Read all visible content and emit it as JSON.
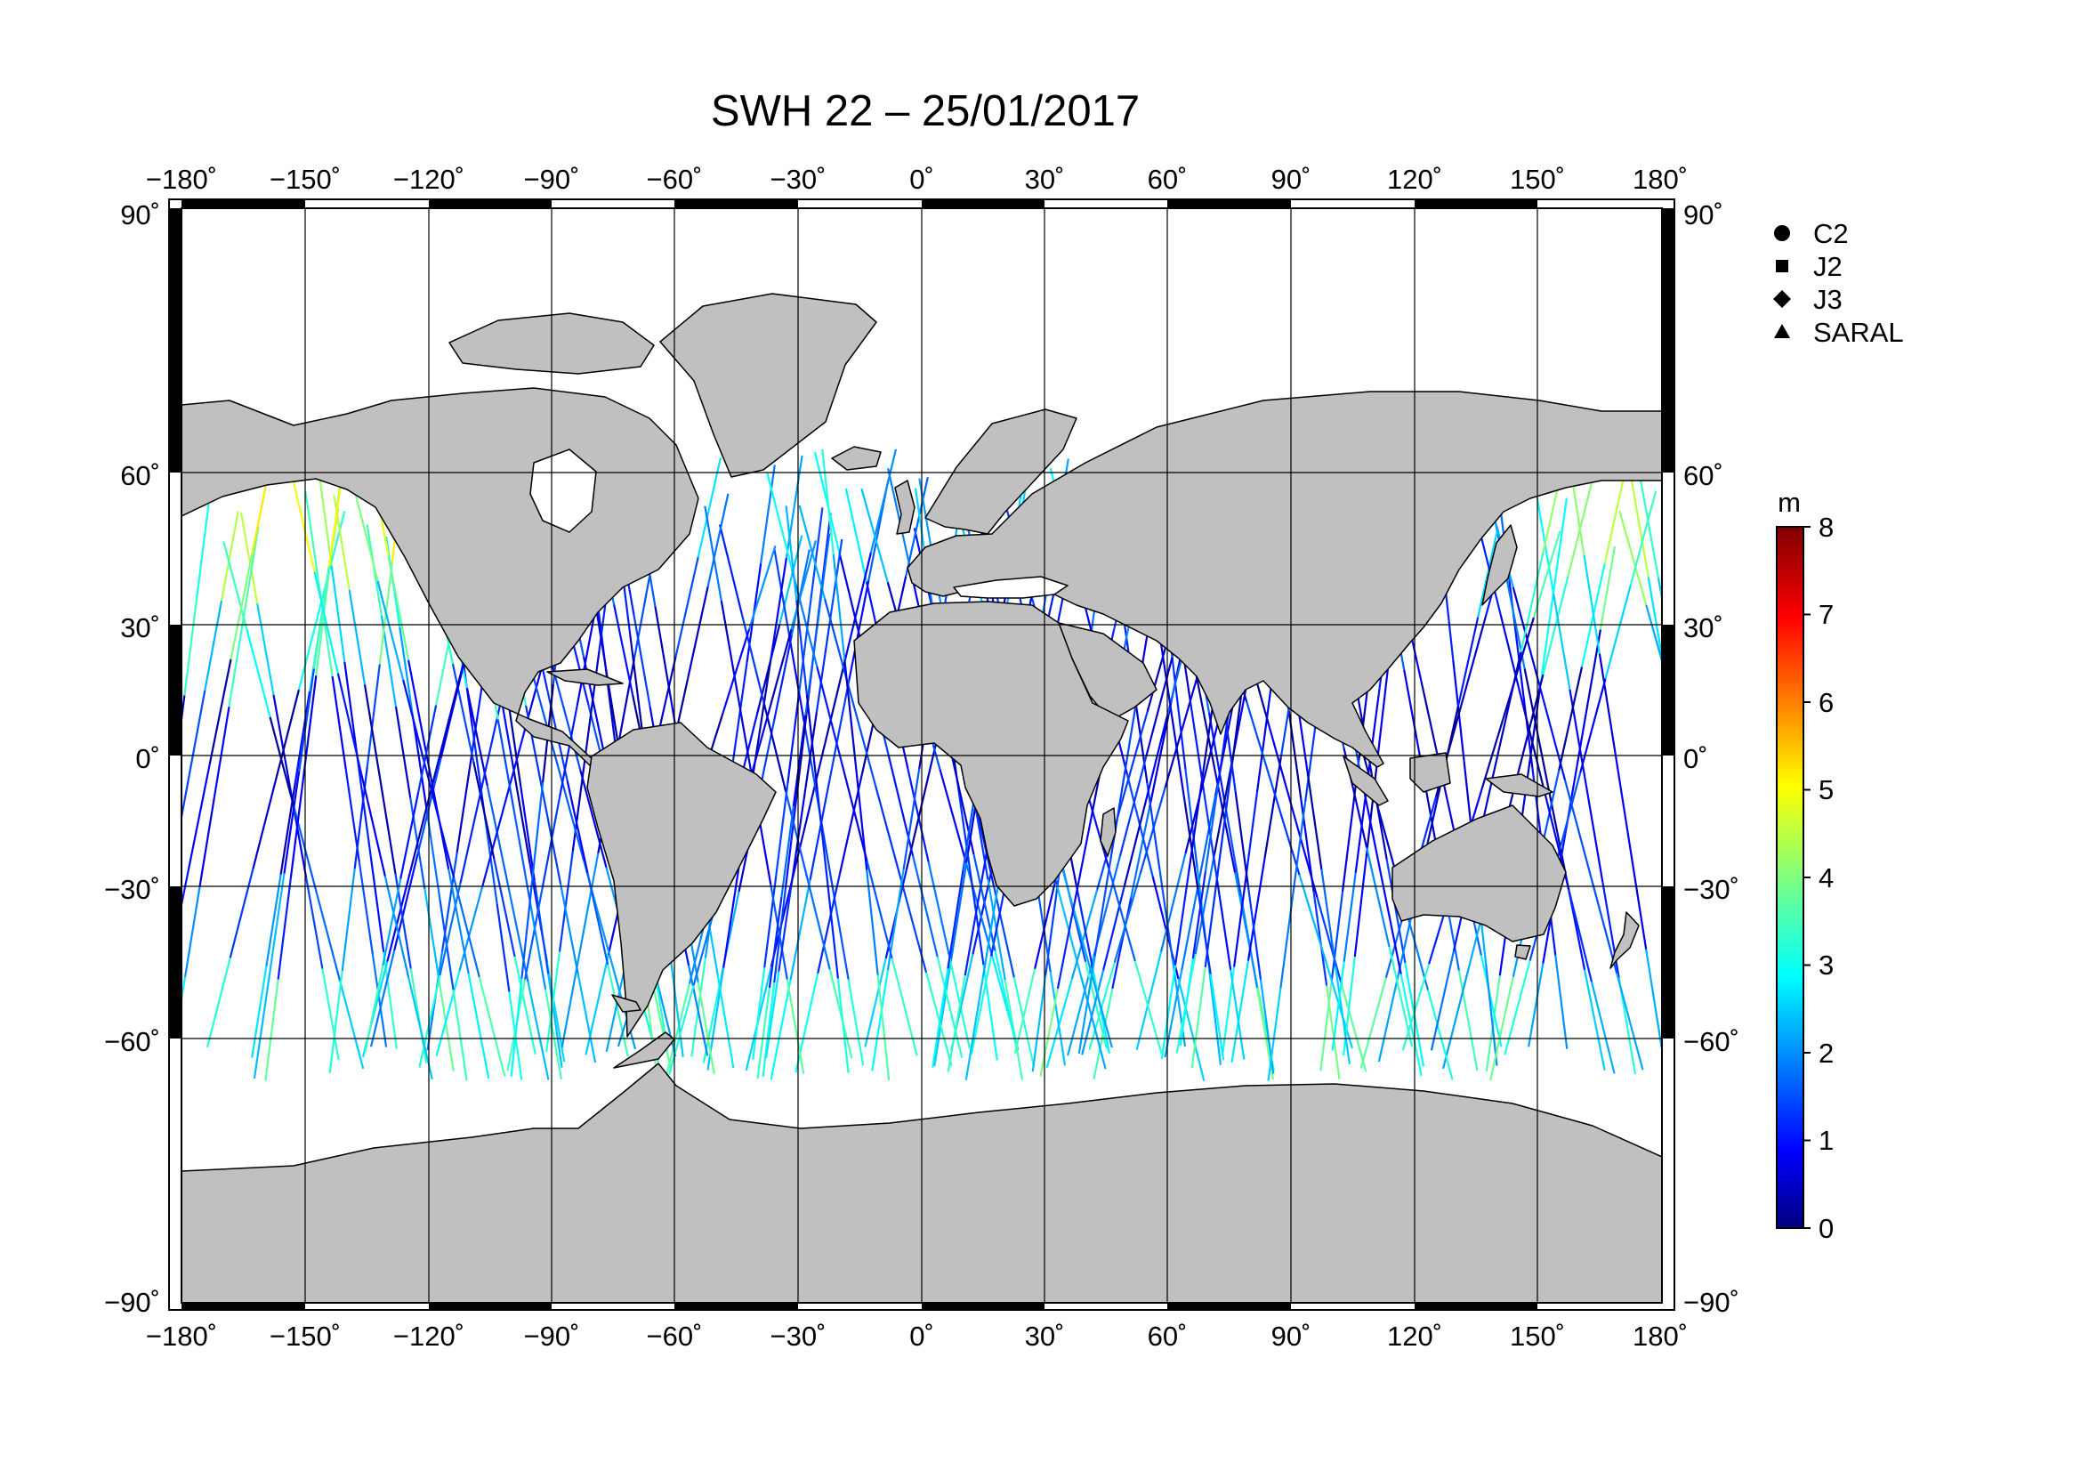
{
  "title": "SWH 22 – 25/01/2017",
  "map": {
    "lon_ticks": [
      "−180˚",
      "−150˚",
      "−120˚",
      "−90˚",
      "−60˚",
      "−30˚",
      "0˚",
      "30˚",
      "60˚",
      "90˚",
      "120˚",
      "150˚",
      "180˚"
    ],
    "lat_ticks_left": [
      "90˚",
      "60˚",
      "30˚",
      "0˚",
      "−30˚",
      "−60˚",
      "−90˚"
    ],
    "lat_ticks_right": [
      "90˚",
      "60˚",
      "30˚",
      "0˚",
      "−30˚",
      "−60˚",
      "−90˚"
    ],
    "colors": {
      "land": "#c0c0c0",
      "ocean": "#ffffff",
      "frame": "#000000",
      "grid": "#000000"
    }
  },
  "legend": [
    {
      "label": "C2",
      "symbol": "circle"
    },
    {
      "label": "J2",
      "symbol": "square"
    },
    {
      "label": "J3",
      "symbol": "diamond"
    },
    {
      "label": "SARAL",
      "symbol": "triangle"
    }
  ],
  "colorbar": {
    "unit": "m",
    "ticks": [
      "0",
      "1",
      "2",
      "3",
      "4",
      "5",
      "6",
      "7",
      "8"
    ],
    "min": 0,
    "max": 8,
    "colormap": "jet"
  }
}
